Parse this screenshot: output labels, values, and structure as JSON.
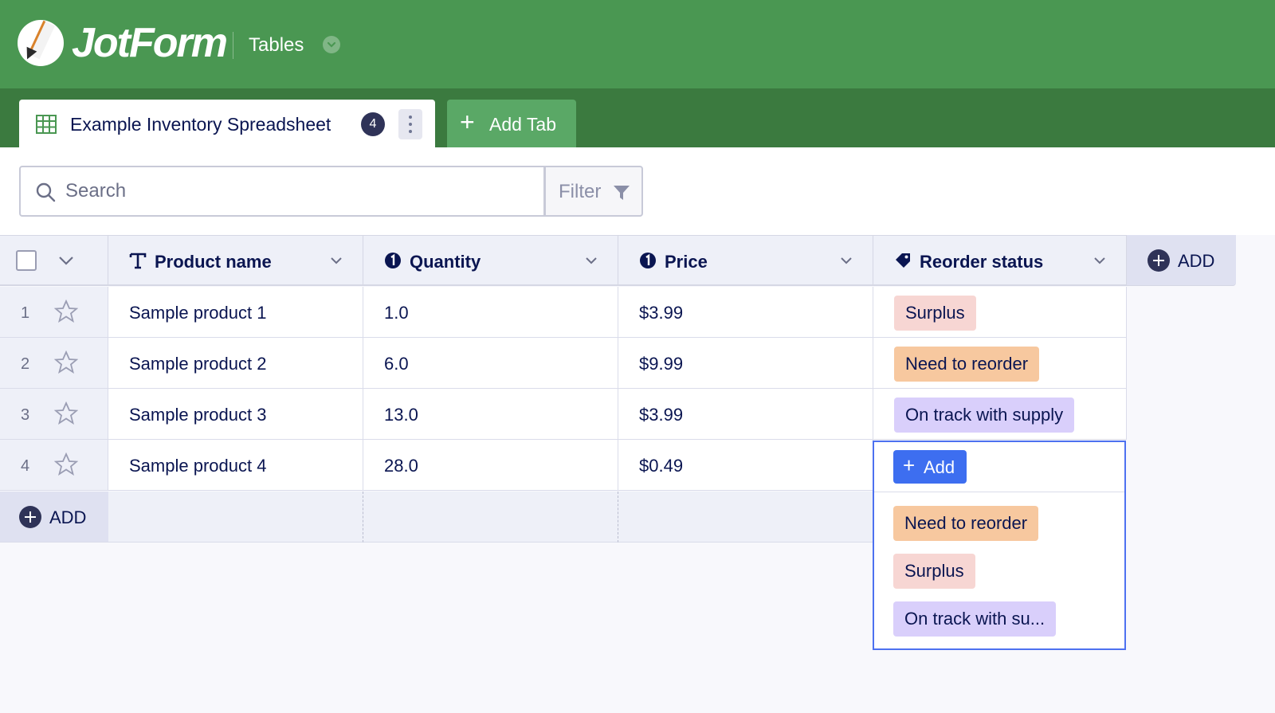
{
  "colors": {
    "header_green": "#4a9752",
    "tabbar_green": "#3b7a3f",
    "add_tab_green": "#5aa866",
    "navy": "#0a1551",
    "accent_blue": "#3d6ef0",
    "surplus": "#f7d6d3",
    "need_to_reorder": "#f7c89f",
    "on_track": "#d9cffb"
  },
  "app": {
    "logo_text": "JotForm",
    "product": "Tables"
  },
  "tabs": {
    "active": {
      "label": "Example Inventory Spreadsheet",
      "count": "4"
    },
    "add_label": "Add Tab"
  },
  "toolbar": {
    "search_placeholder": "Search",
    "filter_label": "Filter"
  },
  "table": {
    "columns": [
      {
        "label": "Product name",
        "icon": "text-icon"
      },
      {
        "label": "Quantity",
        "icon": "number-icon"
      },
      {
        "label": "Price",
        "icon": "number-icon"
      },
      {
        "label": "Reorder status",
        "icon": "tag-icon"
      }
    ],
    "add_column_label": "ADD",
    "add_row_label": "ADD",
    "rows": [
      {
        "num": "1",
        "product": "Sample product 1",
        "quantity": "1.0",
        "price": "$3.99",
        "status": "Surplus"
      },
      {
        "num": "2",
        "product": "Sample product 2",
        "quantity": "6.0",
        "price": "$9.99",
        "status": "Need to reorder"
      },
      {
        "num": "3",
        "product": "Sample product 3",
        "quantity": "13.0",
        "price": "$3.99",
        "status": "On track with supply"
      },
      {
        "num": "4",
        "product": "Sample product 4",
        "quantity": "28.0",
        "price": "$0.49",
        "status": ""
      }
    ]
  },
  "dropdown": {
    "add_label": "Add",
    "options": [
      "Need to reorder",
      "Surplus",
      "On track with su..."
    ]
  }
}
